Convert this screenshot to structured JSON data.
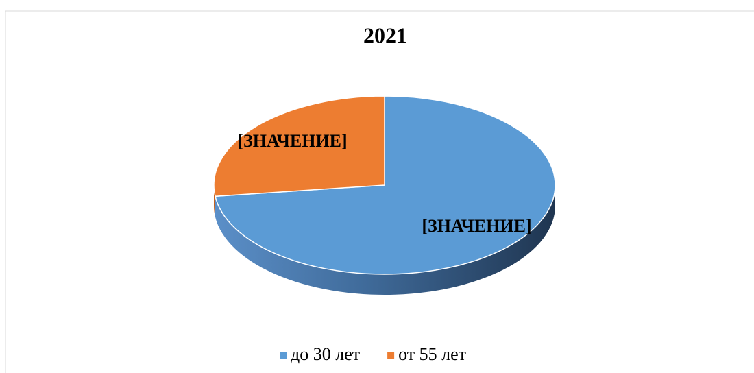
{
  "chart_data": {
    "type": "pie",
    "title": "2021",
    "categories": [
      "до 30 лет",
      "от 55 лет"
    ],
    "values": [
      73,
      27
    ],
    "value_labels": [
      "[ЗНАЧЕНИЕ]",
      "[ЗНАЧЕНИЕ]"
    ],
    "colors": [
      "#5b9bd5",
      "#ed7d31"
    ],
    "legend": "bottom"
  }
}
